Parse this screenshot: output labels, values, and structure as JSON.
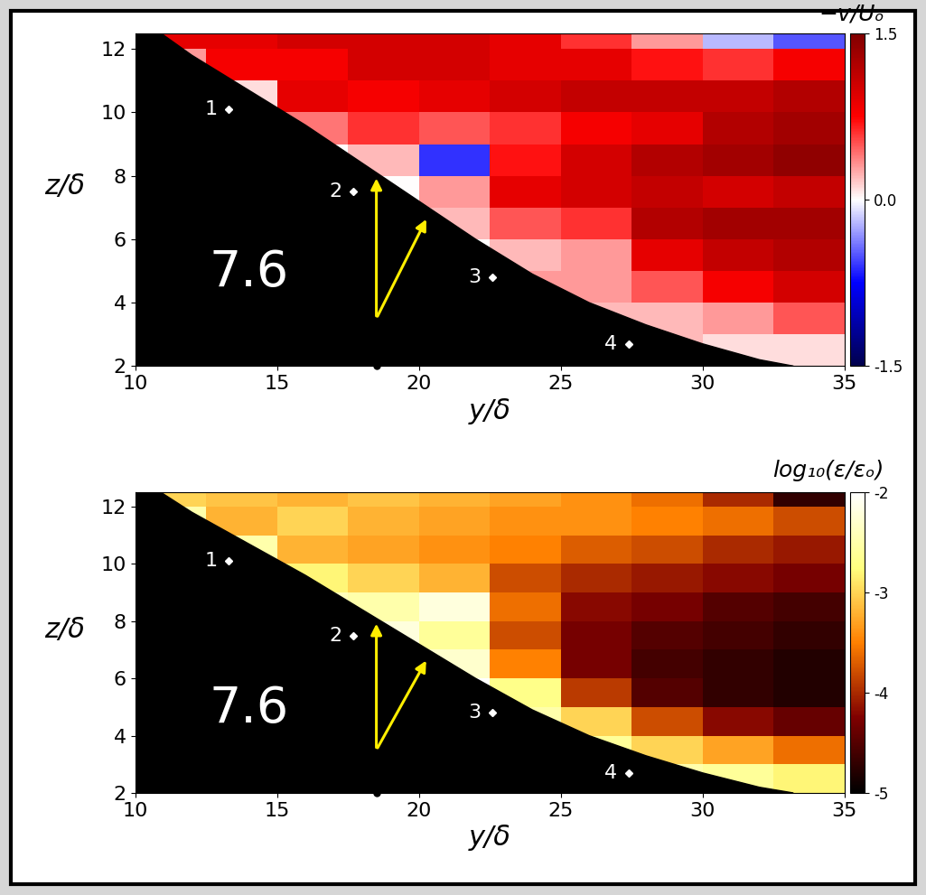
{
  "chart_data": [
    {
      "type": "heatmap",
      "x_label": "y/δ",
      "y_label": "z/δ",
      "panel_label": "7.6",
      "xlim": [
        10,
        35
      ],
      "xticks": [
        10,
        15,
        20,
        25,
        30,
        35
      ],
      "ylim": [
        2,
        12.5
      ],
      "yticks": [
        2,
        4,
        6,
        8,
        10,
        12
      ],
      "y_edges": [
        10,
        12.5,
        15,
        17.5,
        20,
        22.5,
        25,
        27.5,
        30,
        32.5,
        35
      ],
      "z_edges": [
        2,
        3,
        4,
        5,
        6,
        7,
        8,
        9,
        10,
        11,
        12,
        12.5
      ],
      "cells": [
        [
          null,
          null,
          null,
          null,
          null,
          null,
          null,
          0.2,
          0.1,
          0.1
        ],
        [
          null,
          null,
          null,
          null,
          null,
          null,
          0.2,
          0.2,
          0.3,
          0.5
        ],
        [
          null,
          null,
          null,
          null,
          null,
          0.3,
          0.3,
          0.5,
          0.8,
          1.0
        ],
        [
          null,
          null,
          null,
          null,
          null,
          0.2,
          0.3,
          0.9,
          1.1,
          1.2
        ],
        [
          null,
          null,
          null,
          null,
          0.2,
          0.5,
          0.6,
          1.2,
          1.3,
          1.3
        ],
        [
          null,
          null,
          null,
          0.0,
          0.3,
          0.9,
          1.0,
          1.1,
          1.0,
          1.1
        ],
        [
          null,
          null,
          0.0,
          0.2,
          -0.6,
          0.7,
          1.0,
          1.2,
          1.3,
          1.4
        ],
        [
          null,
          null,
          0.4,
          0.6,
          0.5,
          0.6,
          0.8,
          0.9,
          1.2,
          1.3
        ],
        [
          null,
          0.1,
          0.9,
          0.8,
          0.9,
          1.0,
          1.1,
          1.1,
          1.1,
          1.2
        ],
        [
          0.3,
          0.8,
          0.8,
          1.0,
          1.0,
          0.9,
          0.9,
          0.7,
          0.6,
          0.8
        ],
        [
          0.9,
          0.9,
          1.0,
          1.0,
          1.0,
          0.9,
          0.6,
          0.3,
          -0.2,
          -0.5
        ]
      ],
      "colorbar": {
        "label": "−v/Uₒ",
        "range": [
          -1.5,
          1.5
        ],
        "ticks": [
          -1.5,
          0.0,
          1.5
        ]
      },
      "wall": [
        [
          10.9,
          12.5
        ],
        [
          12,
          11.8
        ],
        [
          14,
          10.7
        ],
        [
          16,
          9.6
        ],
        [
          18,
          8.4
        ],
        [
          20,
          7.2
        ],
        [
          22,
          6.0
        ],
        [
          24,
          4.9
        ],
        [
          26,
          4.0
        ],
        [
          28,
          3.3
        ],
        [
          30,
          2.7
        ],
        [
          32,
          2.2
        ],
        [
          33.2,
          2.0
        ]
      ],
      "markers": [
        {
          "label": "1",
          "y": 13.3,
          "z": 10.1
        },
        {
          "label": "2",
          "y": 17.7,
          "z": 7.5
        },
        {
          "label": "3",
          "y": 22.6,
          "z": 4.8
        },
        {
          "label": "4",
          "y": 27.4,
          "z": 2.7
        }
      ],
      "arrows": [
        {
          "from": [
            18.5,
            3.5
          ],
          "to": [
            18.5,
            8.0
          ]
        },
        {
          "from": [
            18.5,
            3.5
          ],
          "to": [
            20.3,
            6.7
          ]
        }
      ],
      "dot": [
        18.5,
        2
      ]
    },
    {
      "type": "heatmap",
      "x_label": "y/δ",
      "y_label": "z/δ",
      "panel_label": "7.6",
      "xlim": [
        10,
        35
      ],
      "xticks": [
        10,
        15,
        20,
        25,
        30,
        35
      ],
      "ylim": [
        2,
        12.5
      ],
      "yticks": [
        2,
        4,
        6,
        8,
        10,
        12
      ],
      "y_edges": [
        10,
        12.5,
        15,
        17.5,
        20,
        22.5,
        25,
        27.5,
        30,
        32.5,
        35
      ],
      "z_edges": [
        2,
        3,
        4,
        5,
        6,
        7,
        8,
        9,
        10,
        11,
        12,
        12.5
      ],
      "cells": [
        [
          null,
          null,
          null,
          null,
          null,
          null,
          null,
          -2.5,
          -2.6,
          -2.8
        ],
        [
          null,
          null,
          null,
          null,
          null,
          null,
          -2.6,
          -3.0,
          -3.3,
          -3.6
        ],
        [
          null,
          null,
          null,
          null,
          null,
          -2.5,
          -3.0,
          -3.8,
          -4.2,
          -4.4
        ],
        [
          null,
          null,
          null,
          null,
          null,
          -2.7,
          -3.9,
          -4.5,
          -4.7,
          -4.8
        ],
        [
          null,
          null,
          null,
          null,
          -2.3,
          -3.5,
          -4.3,
          -4.6,
          -4.7,
          -4.8
        ],
        [
          null,
          null,
          null,
          -2.2,
          -2.6,
          -3.8,
          -4.3,
          -4.5,
          -4.6,
          -4.7
        ],
        [
          null,
          null,
          -2.4,
          -2.5,
          -2.2,
          -3.6,
          -4.2,
          -4.3,
          -4.5,
          -4.6
        ],
        [
          null,
          null,
          -2.8,
          -3.0,
          -3.2,
          -3.8,
          -4.0,
          -4.1,
          -4.2,
          -4.3
        ],
        [
          null,
          -2.5,
          -3.2,
          -3.3,
          -3.4,
          -3.5,
          -3.7,
          -3.8,
          -4.0,
          -4.1
        ],
        [
          -2.5,
          -3.2,
          -3.0,
          -3.2,
          -3.3,
          -3.4,
          -3.4,
          -3.5,
          -3.6,
          -3.8
        ],
        [
          -3.0,
          -3.1,
          -3.2,
          -3.1,
          -3.2,
          -3.3,
          -3.4,
          -3.6,
          -4.0,
          -4.7
        ]
      ],
      "colorbar": {
        "label": "log₁₀(ε/εₒ)",
        "range": [
          -5,
          -2
        ],
        "ticks": [
          -5,
          -4,
          -3,
          -2
        ]
      },
      "wall": [
        [
          10.9,
          12.5
        ],
        [
          12,
          11.8
        ],
        [
          14,
          10.7
        ],
        [
          16,
          9.6
        ],
        [
          18,
          8.4
        ],
        [
          20,
          7.2
        ],
        [
          22,
          6.0
        ],
        [
          24,
          4.9
        ],
        [
          26,
          4.0
        ],
        [
          28,
          3.3
        ],
        [
          30,
          2.7
        ],
        [
          32,
          2.2
        ],
        [
          33.2,
          2.0
        ]
      ],
      "markers": [
        {
          "label": "1",
          "y": 13.3,
          "z": 10.1
        },
        {
          "label": "2",
          "y": 17.7,
          "z": 7.5
        },
        {
          "label": "3",
          "y": 22.6,
          "z": 4.8
        },
        {
          "label": "4",
          "y": 27.4,
          "z": 2.7
        }
      ],
      "arrows": [
        {
          "from": [
            18.5,
            3.5
          ],
          "to": [
            18.5,
            8.0
          ]
        },
        {
          "from": [
            18.5,
            3.5
          ],
          "to": [
            20.3,
            6.7
          ]
        }
      ],
      "dot": [
        18.5,
        2
      ]
    }
  ]
}
